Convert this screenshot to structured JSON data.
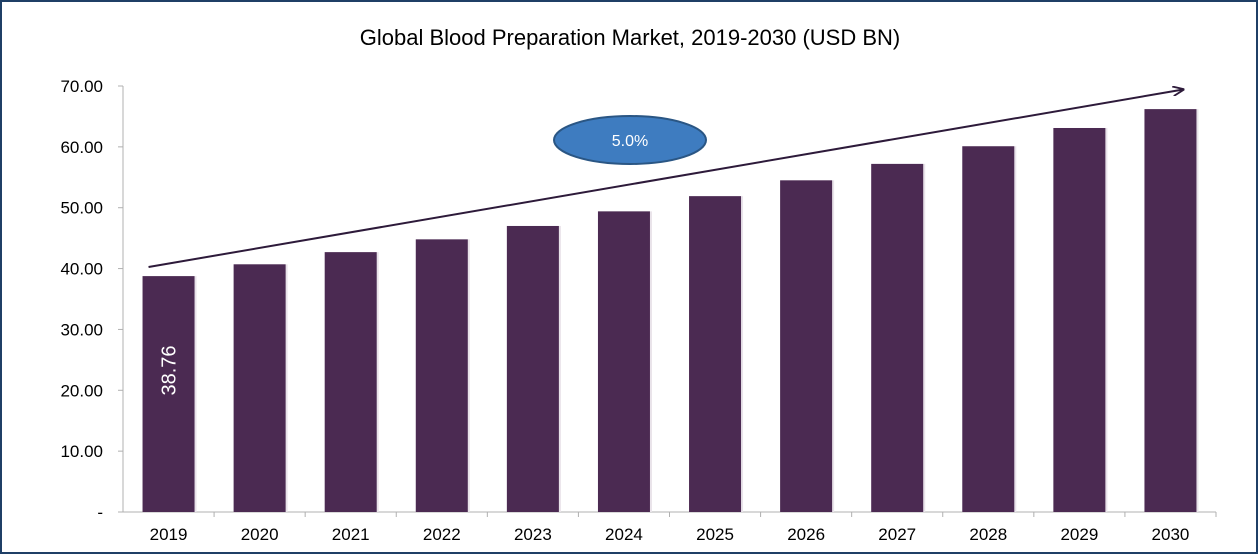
{
  "chart_data": {
    "type": "bar",
    "title": "Global Blood Preparation Market, 2019-2030 (USD BN)",
    "categories": [
      "2019",
      "2020",
      "2021",
      "2022",
      "2023",
      "2024",
      "2025",
      "2026",
      "2027",
      "2028",
      "2029",
      "2030"
    ],
    "values": [
      38.76,
      40.7,
      42.7,
      44.8,
      47.0,
      49.4,
      51.9,
      54.5,
      57.2,
      60.1,
      63.1,
      66.2
    ],
    "y_ticks": [
      "-",
      "10.00",
      "20.00",
      "30.00",
      "40.00",
      "50.00",
      "60.00",
      "70.00"
    ],
    "ylim": [
      0,
      70
    ],
    "xlabel": "",
    "ylabel": "",
    "data_labels": [
      {
        "category": "2019",
        "text": "38.76"
      }
    ],
    "annotation": {
      "text": "5.0%"
    },
    "grid": false,
    "colors": {
      "bar": "#4b2a52",
      "arrow": "#2d1a3a",
      "bubble_fill": "#3e7cc0",
      "bubble_stroke": "#2a5684",
      "border": "#1f3f66"
    }
  }
}
